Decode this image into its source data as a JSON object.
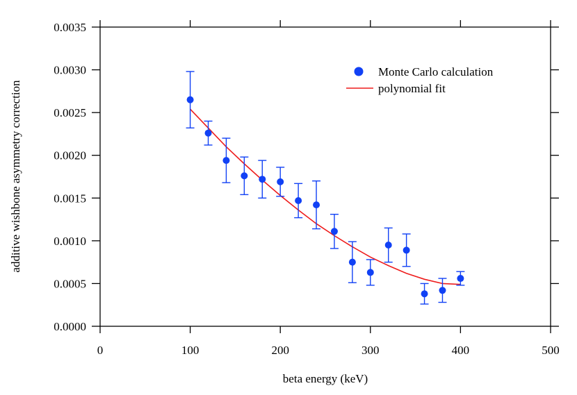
{
  "chart_data": {
    "type": "scatter",
    "title": "",
    "xlabel": "beta energy (keV)",
    "ylabel": "additive wishbone asymmetry correction",
    "xlim": [
      0,
      500
    ],
    "ylim": [
      0.0,
      0.0035
    ],
    "xticks": [
      0,
      100,
      200,
      300,
      400,
      500
    ],
    "xtick_labels": [
      "0",
      "100",
      "200",
      "300",
      "400",
      "500"
    ],
    "yticks": [
      0.0,
      0.0005,
      0.001,
      0.0015,
      0.002,
      0.0025,
      0.003,
      0.0035
    ],
    "ytick_labels": [
      "0.0000",
      "0.0005",
      "0.0010",
      "0.0015",
      "0.0020",
      "0.0025",
      "0.0030",
      "0.0035"
    ],
    "grid": false,
    "legend_position": "top-right",
    "series": [
      {
        "name": "Monte Carlo calculation",
        "kind": "points-with-error-bars",
        "color": "#1141f5",
        "x": [
          100,
          120,
          140,
          160,
          180,
          200,
          220,
          240,
          260,
          280,
          300,
          320,
          340,
          360,
          380,
          400
        ],
        "y": [
          0.00265,
          0.00226,
          0.00194,
          0.00176,
          0.00172,
          0.00169,
          0.00147,
          0.00142,
          0.00111,
          0.00075,
          0.00063,
          0.00095,
          0.00089,
          0.00038,
          0.00042,
          0.00056
        ],
        "yerr": [
          0.00033,
          0.00014,
          0.00026,
          0.00022,
          0.00022,
          0.00017,
          0.0002,
          0.00028,
          0.0002,
          0.00024,
          0.00015,
          0.0002,
          0.00019,
          0.00012,
          0.00014,
          8e-05
        ]
      },
      {
        "name": "polynomial fit",
        "kind": "line",
        "color": "#ee1c1c",
        "x": [
          100,
          120,
          140,
          160,
          180,
          200,
          220,
          240,
          260,
          280,
          300,
          320,
          340,
          360,
          380,
          400
        ],
        "y": [
          0.00254,
          0.00232,
          0.0021,
          0.0019,
          0.00171,
          0.00153,
          0.00136,
          0.0012,
          0.00106,
          0.00093,
          0.00081,
          0.00071,
          0.00062,
          0.00055,
          0.0005,
          0.00049
        ]
      }
    ]
  }
}
